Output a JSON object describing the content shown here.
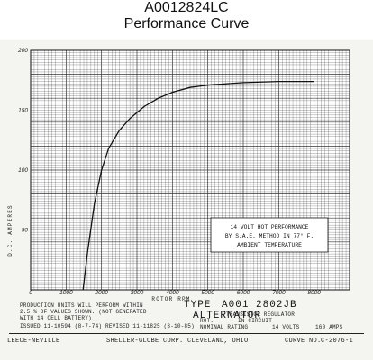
{
  "header": {
    "title": "A0012824LC",
    "subtitle": "Performance Curve"
  },
  "chart_data": {
    "type": "line",
    "xlabel": "ROTOR RPM",
    "ylabel": "D.C. AMPERES",
    "xlim": [
      0,
      9000
    ],
    "ylim": [
      0,
      200
    ],
    "x_ticks": [
      {
        "v": 0,
        "label": "0"
      },
      {
        "v": 1000,
        "label": "1000"
      },
      {
        "v": 2000,
        "label": "2000"
      },
      {
        "v": 3000,
        "label": "3000"
      },
      {
        "v": 4000,
        "label": "4000"
      },
      {
        "v": 5000,
        "label": "5000"
      },
      {
        "v": 6000,
        "label": "6000"
      },
      {
        "v": 7000,
        "label": "7000"
      },
      {
        "v": 8000,
        "label": "8000"
      }
    ],
    "y_ticks": [
      {
        "v": 50,
        "label": "50"
      },
      {
        "v": 100,
        "label": "100"
      },
      {
        "v": 150,
        "label": "150"
      },
      {
        "v": 200,
        "label": "200"
      }
    ],
    "grid": true,
    "series": [
      {
        "x": [
          1480,
          1600,
          1800,
          2000,
          2200,
          2500,
          2800,
          3200,
          3600,
          4000,
          4500,
          5000,
          6000,
          7000,
          8000
        ],
        "y": [
          0,
          30,
          72,
          100,
          118,
          133,
          143,
          153,
          160,
          165,
          169,
          171,
          173,
          174,
          174
        ]
      }
    ],
    "annotation": [
      "14 VOLT HOT PERFORMANCE",
      "BY S.A.E. METHOD IN 77° F.",
      "AMBIENT TEMPERATURE"
    ]
  },
  "notes": {
    "line1": "PRODUCTION UNITS WILL PERFORM WITHIN",
    "line2": "2.5 % OF VALUES SHOWN. (NOT GENERATED",
    "line3": "WITH 14 CELL BATTERY)",
    "issue": "ISSUED 11-10594 (8-7-74) REVISED 11-11825 (3-10-85)"
  },
  "type_block": {
    "type_label": "TYPE",
    "type_number": "A001 2802JB",
    "alternator": "ALTERNATOR",
    "regulator": "TRANSISTOR REGULATOR",
    "rotor": "ROT.",
    "in_circuit": "IN CIRCUIT",
    "rating_label": "NOMINAL RATING",
    "rating_volts": "14 VOLTS",
    "rating_amps": "160 AMPS"
  },
  "footer": {
    "company": "LEECE-NEVILLE",
    "address": "SHELLER-GLOBE CORP. CLEVELAND, OHIO",
    "curve_label": "CURVE NO.",
    "curve_no": "C-2076-1"
  }
}
